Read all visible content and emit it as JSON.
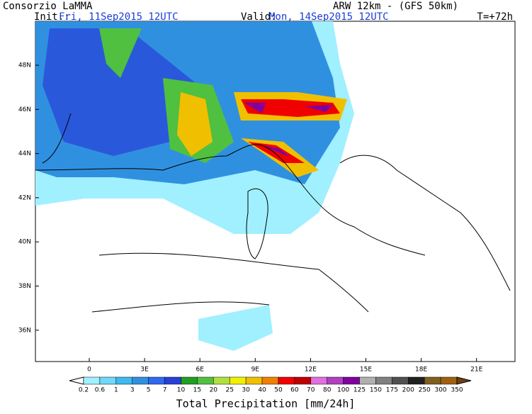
{
  "header": {
    "org": "Consorzio LaMMA",
    "model": "ARW 12km - (GFS 50km)",
    "init_label": "Init.:",
    "init": "Fri, 11Sep2015 12UTC",
    "valid_label": "Valid:",
    "valid": "Mon, 14Sep2015 12UTC",
    "step": "T=+72h"
  },
  "map": {
    "lat_labels": [
      "48N",
      "46N",
      "44N",
      "42N",
      "40N",
      "38N",
      "36N"
    ],
    "lon_labels": [
      "0",
      "3E",
      "6E",
      "9E",
      "12E",
      "15E",
      "18E",
      "21E"
    ]
  },
  "colorbar": {
    "levels": [
      0.2,
      0.6,
      1,
      3,
      5,
      7,
      10,
      15,
      20,
      25,
      30,
      40,
      50,
      60,
      70,
      80,
      100,
      125,
      150,
      175,
      200,
      250,
      300,
      350
    ],
    "colors": [
      "#a0f0ff",
      "#70d8f8",
      "#40b8f0",
      "#3090e0",
      "#3068f0",
      "#2840d8",
      "#20a020",
      "#50c040",
      "#b0e040",
      "#f0f000",
      "#f0c000",
      "#f08000",
      "#f00000",
      "#c00000",
      "#e070e0",
      "#b040c0",
      "#8000a0",
      "#b0b0b0",
      "#808080",
      "#505050",
      "#202020",
      "#806020",
      "#a06010"
    ],
    "under_color": "#ffffff",
    "over_color": "#704010",
    "title": "Total Precipitation [mm/24h]"
  }
}
